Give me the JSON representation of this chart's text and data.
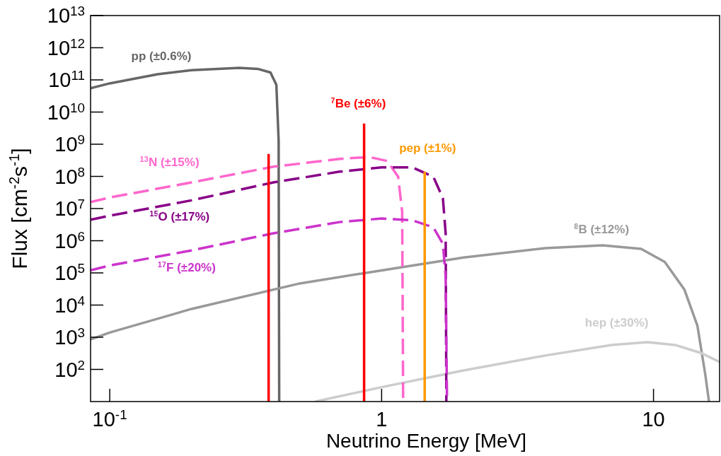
{
  "chart_data": {
    "type": "line",
    "xlabel": "Neutrino Energy [MeV]",
    "ylabel": "Flux [cm$^{-2}$s$^{-1}$]",
    "log": "xy",
    "grid": false,
    "legend": false,
    "marker": "none",
    "xlim": [
      0.085,
      17.5
    ],
    "xticks": [
      {
        "value": 0.1,
        "label": "10$^{-1}$"
      },
      1,
      10
    ],
    "ylim": [
      10,
      10000000000000.0
    ],
    "yticks": [
      {
        "value": 100,
        "label": "10$^{2}$"
      },
      {
        "value": 1000,
        "label": "10$^{3}$"
      },
      {
        "value": 10000,
        "label": "10$^{4}$"
      },
      {
        "value": 100000,
        "label": "10$^{5}$"
      },
      {
        "value": 1000000,
        "label": "10$^{6}$"
      },
      {
        "value": 10000000,
        "label": "10$^{7}$"
      },
      {
        "value": 100000000,
        "label": "10$^{8}$"
      },
      {
        "value": 1000000000,
        "label": "10$^{9}$"
      },
      {
        "value": 10000000000,
        "label": "10$^{10}$"
      },
      {
        "value": 100000000000,
        "label": "10$^{11}$"
      },
      {
        "value": 1000000000000,
        "label": "10$^{12}$"
      },
      {
        "value": 10000000000000,
        "label": "10$^{13}$"
      }
    ],
    "series": [
      {
        "name": "pp (±0.6%)",
        "color": "#666666",
        "line_style": "solid",
        "x": [
          0.085,
          0.1,
          0.15,
          0.2,
          0.3,
          0.35,
          0.39,
          0.41,
          0.418,
          0.42
        ],
        "values": [
          55000000000.0,
          78000000000.0,
          150000000000.0,
          200000000000.0,
          235000000000.0,
          220000000000.0,
          170000000000.0,
          70000000000.0,
          1300000000.0,
          10
        ]
      },
      {
        "name": "$^{8}$B (±12%)",
        "color": "#999999",
        "line_style": "solid",
        "x": [
          0.085,
          0.1,
          0.2,
          0.5,
          1,
          2,
          4,
          6.5,
          9,
          11,
          13,
          14.5,
          15.5,
          16
        ],
        "values": [
          850,
          1400,
          7600,
          47000,
          120000,
          300000,
          590000,
          720000,
          560000,
          220000,
          30000,
          2300,
          70,
          10
        ]
      },
      {
        "name": "hep (±30%)",
        "color": "#cccccc",
        "line_style": "solid",
        "x": [
          0.57,
          1,
          2,
          4,
          7,
          9.5,
          12,
          15,
          17.5
        ],
        "values": [
          10,
          28,
          93,
          270,
          575,
          700,
          575,
          320,
          170
        ]
      },
      {
        "name": "$^{13}$N (±15%)",
        "color": "#ff66cc",
        "line_style": "dashed",
        "x": [
          0.085,
          0.1,
          0.2,
          0.4,
          0.7,
          0.9,
          1.05,
          1.15,
          1.19,
          1.2
        ],
        "values": [
          16000000.0,
          22000000.0,
          65000000.0,
          200000000.0,
          350000000.0,
          400000000.0,
          300000000.0,
          98000000.0,
          8000000.0,
          10
        ]
      },
      {
        "name": "$^{15}$O (±17%)",
        "color": "#880088",
        "line_style": "dashed",
        "x": [
          0.085,
          0.1,
          0.2,
          0.4,
          0.7,
          1,
          1.3,
          1.55,
          1.68,
          1.72,
          1.73
        ],
        "values": [
          4500000.0,
          6000000.0,
          18000000.0,
          65000000.0,
          140000000.0,
          190000000.0,
          190000000.0,
          97000000.0,
          21000000.0,
          1700000.0,
          10
        ]
      },
      {
        "name": "$^{17}$F (±20%)",
        "color": "#cc33cc",
        "line_style": "dashed",
        "x": [
          0.085,
          0.1,
          0.2,
          0.4,
          0.7,
          1,
          1.3,
          1.55,
          1.68,
          1.72,
          1.74
        ],
        "values": [
          120000.0,
          170000.0,
          500000.0,
          1700000.0,
          3800000.0,
          4900000.0,
          4300000.0,
          2600000.0,
          800000.0,
          80000.0,
          10
        ]
      },
      {
        "color": "#ff0000",
        "line_style": "solid",
        "x": [
          0.384,
          0.384
        ],
        "values": [
          10,
          500000000.0
        ]
      },
      {
        "name": "$^{7}$Be (±6%)",
        "color": "#ff0000",
        "line_style": "solid",
        "x": [
          0.862,
          0.862
        ],
        "values": [
          10,
          4400000000.0
        ]
      },
      {
        "name": "pep (±1%)",
        "color": "#ff9900",
        "line_style": "solid",
        "x": [
          1.44,
          1.44
        ],
        "values": [
          10,
          140000000.0
        ]
      }
    ]
  }
}
